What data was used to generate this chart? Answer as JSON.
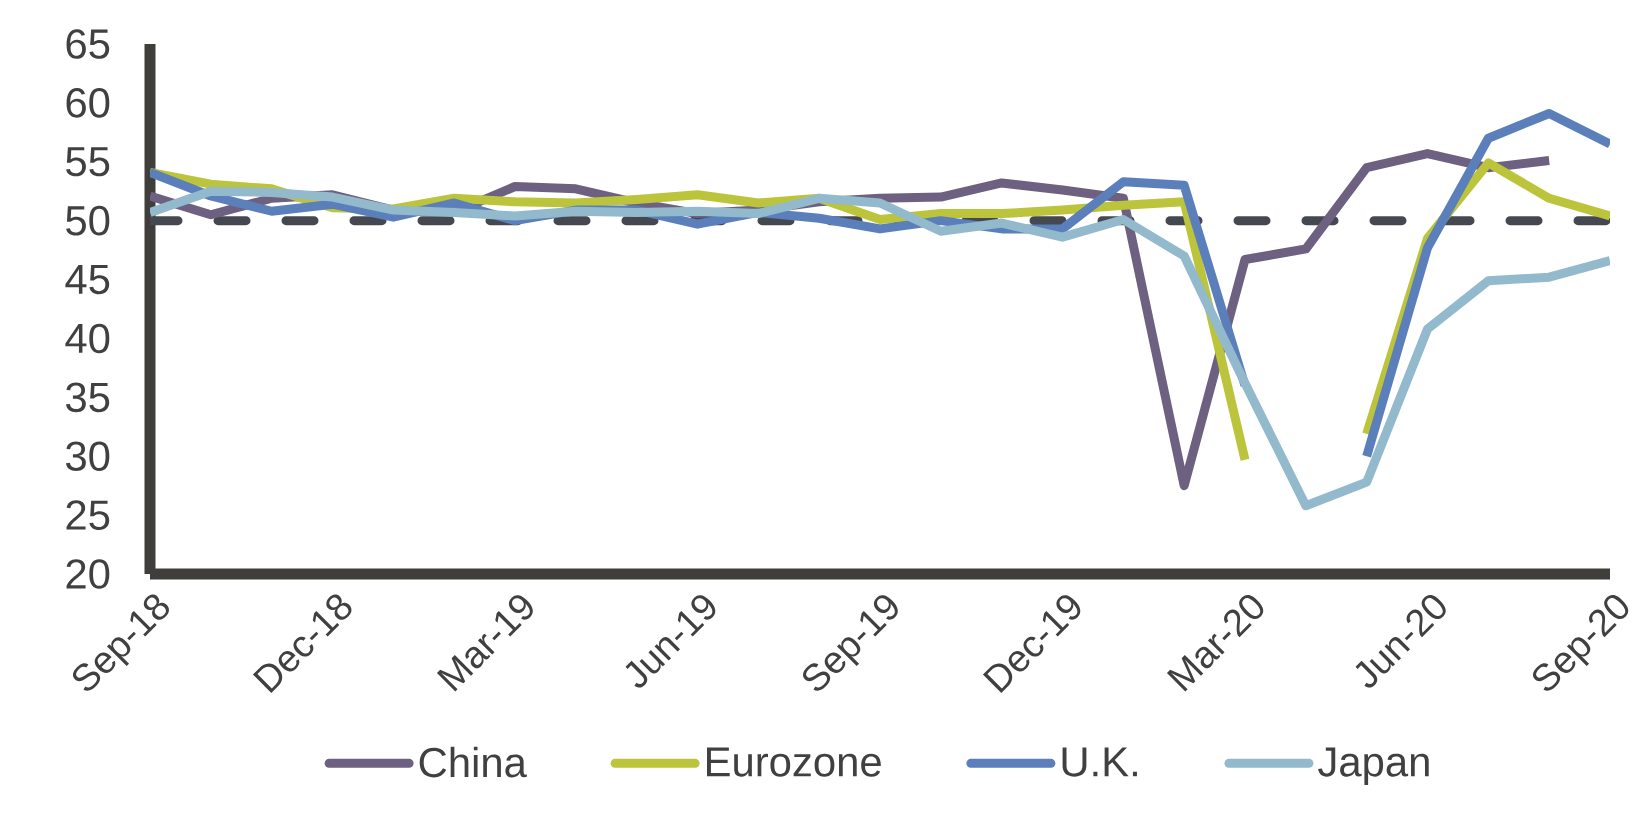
{
  "chart_data": {
    "type": "line",
    "categories": [
      "Sep-18",
      null,
      null,
      "Dec-18",
      null,
      null,
      "Mar-19",
      null,
      null,
      "Jun-19",
      null,
      null,
      "Sep-19",
      null,
      null,
      "Dec-19",
      null,
      null,
      "Mar-20",
      null,
      null,
      "Jun-20",
      null,
      null,
      "Sep-20"
    ],
    "series": [
      {
        "name": "China",
        "color": "#6e6080",
        "values": [
          52.1,
          50.5,
          51.9,
          52.2,
          50.9,
          50.7,
          52.9,
          52.7,
          51.5,
          50.6,
          50.9,
          51.6,
          51.9,
          52.0,
          53.2,
          52.6,
          51.9,
          27.5,
          46.7,
          47.6,
          54.5,
          55.7,
          54.5,
          55.1,
          null
        ]
      },
      {
        "name": "Eurozone",
        "color": "#bcc43c",
        "values": [
          54.1,
          53.1,
          52.7,
          51.1,
          51.0,
          51.9,
          51.6,
          51.5,
          51.8,
          52.2,
          51.5,
          51.9,
          50.1,
          50.6,
          50.6,
          50.9,
          51.3,
          51.6,
          29.7,
          null,
          31.9,
          48.5,
          54.9,
          51.9,
          50.4
        ]
      },
      {
        "name": "U.K.",
        "color": "#5b7fba",
        "values": [
          54.1,
          52.1,
          50.8,
          51.4,
          50.3,
          51.5,
          50.0,
          50.9,
          50.9,
          49.7,
          50.7,
          50.2,
          49.3,
          50.0,
          49.3,
          49.3,
          53.3,
          53.0,
          36.0,
          null,
          30.0,
          47.7,
          57.0,
          59.1,
          56.5
        ]
      },
      {
        "name": "Japan",
        "color": "#92b9cc",
        "values": [
          50.7,
          52.5,
          52.4,
          52.0,
          50.9,
          50.7,
          50.4,
          50.8,
          50.7,
          50.8,
          50.6,
          51.9,
          51.5,
          49.1,
          49.8,
          48.6,
          50.1,
          47.0,
          36.2,
          25.8,
          27.8,
          40.8,
          44.9,
          45.2,
          46.6
        ]
      }
    ],
    "ylim": [
      20,
      65
    ],
    "yticks": [
      20,
      25,
      30,
      35,
      40,
      45,
      50,
      55,
      60,
      65
    ],
    "ref_lines": [
      {
        "axis": "y",
        "value": 50,
        "color": "#454850",
        "line_style": "dashed"
      }
    ],
    "legend": "bottom"
  }
}
